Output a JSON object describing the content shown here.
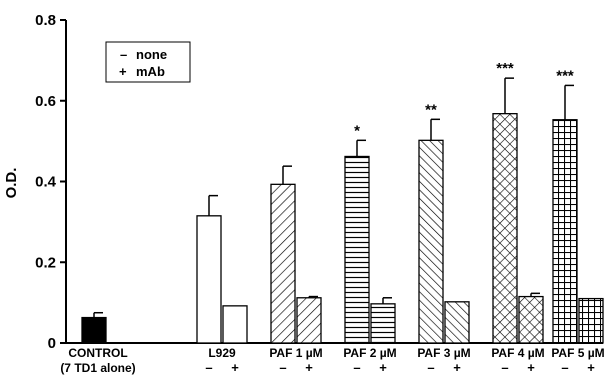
{
  "chart_data": {
    "type": "bar",
    "ylabel": "O.D.",
    "ylim": [
      0,
      0.8
    ],
    "yticks": [
      "0",
      "0.2",
      "0.4",
      "0.6",
      "0.8"
    ],
    "legend": {
      "placement": "top-left",
      "entries": [
        {
          "symbol": "–",
          "label": "none"
        },
        {
          "symbol": "+",
          "label": "mAb"
        }
      ]
    },
    "groups": [
      {
        "label": "CONTROL",
        "sublabel": "(7 TD1 alone)",
        "pattern": "solid",
        "bars": [
          {
            "condition": "none",
            "value": 0.063,
            "error": 0.012,
            "sig": ""
          }
        ]
      },
      {
        "label": "L929",
        "pattern": "open",
        "bars": [
          {
            "condition": "none",
            "value": 0.315,
            "error": 0.05,
            "sig": ""
          },
          {
            "condition": "mAb",
            "value": 0.092,
            "error": 0.0,
            "sig": ""
          }
        ]
      },
      {
        "label": "PAF 1 µM",
        "pattern": "diagonal",
        "bars": [
          {
            "condition": "none",
            "value": 0.393,
            "error": 0.045,
            "sig": ""
          },
          {
            "condition": "mAb",
            "value": 0.112,
            "error": 0.003,
            "sig": ""
          }
        ]
      },
      {
        "label": "PAF 2 µM",
        "pattern": "horizontal",
        "bars": [
          {
            "condition": "none",
            "value": 0.462,
            "error": 0.04,
            "sig": "*"
          },
          {
            "condition": "mAb",
            "value": 0.097,
            "error": 0.015,
            "sig": ""
          }
        ]
      },
      {
        "label": "PAF 3 µM",
        "pattern": "backdiagonal",
        "bars": [
          {
            "condition": "none",
            "value": 0.502,
            "error": 0.052,
            "sig": "**"
          },
          {
            "condition": "mAb",
            "value": 0.102,
            "error": 0.0,
            "sig": ""
          }
        ]
      },
      {
        "label": "PAF 4 µM",
        "pattern": "crosshatch",
        "bars": [
          {
            "condition": "none",
            "value": 0.568,
            "error": 0.088,
            "sig": "***"
          },
          {
            "condition": "mAb",
            "value": 0.115,
            "error": 0.008,
            "sig": ""
          }
        ]
      },
      {
        "label": "PAF 5 µM",
        "pattern": "grid",
        "bars": [
          {
            "condition": "none",
            "value": 0.553,
            "error": 0.085,
            "sig": "***"
          },
          {
            "condition": "mAb",
            "value": 0.11,
            "error": 0.0,
            "sig": ""
          }
        ]
      }
    ]
  }
}
